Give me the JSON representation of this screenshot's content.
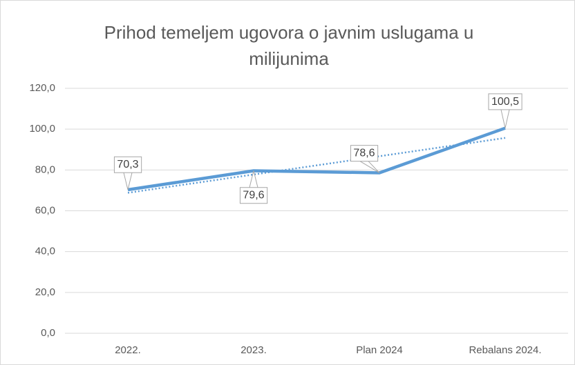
{
  "chart_data": {
    "type": "line",
    "title": "Prihod temeljem ugovora o javnim uslugama u milijunima",
    "categories": [
      "2022.",
      "2023.",
      "Plan 2024",
      "Rebalans 2024."
    ],
    "series": [
      {
        "color": "#5b9bd5",
        "values": [
          70.3,
          79.6,
          78.6,
          100.5
        ],
        "value_labels": [
          "70,3",
          "79,6",
          "78,6",
          "100,5"
        ],
        "trendline": "linear"
      }
    ],
    "ylim": [
      0,
      120
    ],
    "yticks": [
      {
        "value": 0,
        "label": "0,0"
      },
      {
        "value": 20,
        "label": "20,0"
      },
      {
        "value": 40,
        "label": "40,0"
      },
      {
        "value": 60,
        "label": "60,0"
      },
      {
        "value": 80,
        "label": "80,0"
      },
      {
        "value": 100,
        "label": "100,0"
      },
      {
        "value": 120,
        "label": "120,0"
      }
    ],
    "grid": true
  }
}
